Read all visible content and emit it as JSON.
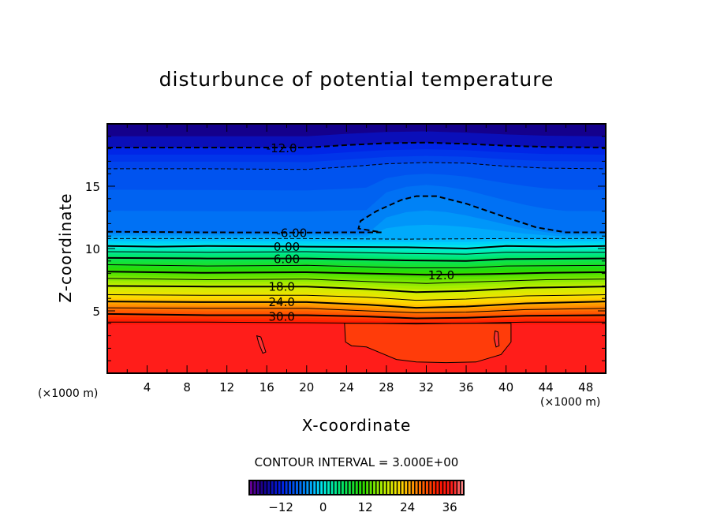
{
  "chart_data": {
    "type": "contour",
    "title": "disturbunce of potential temperature",
    "xlabel": "X-coordinate",
    "ylabel": "Z-coordinate",
    "x_unit": "(×1000 m)",
    "y_unit": "(×1000 m)",
    "xlim": [
      0,
      50
    ],
    "ylim": [
      0,
      20
    ],
    "x_ticks": [
      4,
      8,
      12,
      16,
      20,
      24,
      28,
      32,
      36,
      40,
      44,
      48
    ],
    "y_ticks": [
      5,
      10,
      15
    ],
    "contour_interval_text": "CONTOUR INTERVAL = 3.000E+00",
    "contour_interval": 3,
    "colorbar": {
      "range": [
        -21,
        40
      ],
      "ticks": [
        -12,
        0,
        12,
        24,
        36
      ],
      "tick_labels": [
        "−12",
        "0",
        "12",
        "24",
        "36"
      ]
    },
    "contours": [
      {
        "level": -12,
        "label": "-12.0",
        "label_at": [
          17.5,
          18.1
        ],
        "points": [
          [
            0,
            18.1
          ],
          [
            10,
            18.1
          ],
          [
            20,
            18.1
          ],
          [
            24,
            18.3
          ],
          [
            28,
            18.45
          ],
          [
            32,
            18.5
          ],
          [
            36,
            18.4
          ],
          [
            40,
            18.25
          ],
          [
            44,
            18.15
          ],
          [
            50,
            18.1
          ]
        ]
      },
      {
        "level": -9,
        "points": [
          [
            0,
            16.4
          ],
          [
            10,
            16.4
          ],
          [
            20,
            16.35
          ],
          [
            24,
            16.55
          ],
          [
            28,
            16.8
          ],
          [
            32,
            16.9
          ],
          [
            36,
            16.85
          ],
          [
            40,
            16.6
          ],
          [
            44,
            16.45
          ],
          [
            50,
            16.4
          ]
        ]
      },
      {
        "level": -6,
        "label": "-6.00",
        "label_at": [
          18.5,
          11.3
        ],
        "points": [
          [
            0,
            11.35
          ],
          [
            10,
            11.3
          ],
          [
            20,
            11.28
          ],
          [
            24,
            11.3
          ],
          [
            27.5,
            11.3
          ],
          [
            26,
            11.5
          ],
          [
            25.2,
            11.6
          ],
          [
            25.4,
            12.2
          ],
          [
            27,
            13.0
          ],
          [
            29.5,
            13.9
          ],
          [
            31,
            14.2
          ],
          [
            33,
            14.2
          ],
          [
            36,
            13.6
          ],
          [
            40,
            12.5
          ],
          [
            43,
            11.7
          ],
          [
            46,
            11.3
          ],
          [
            50,
            11.3
          ]
        ]
      },
      {
        "level": -3,
        "points": [
          [
            0,
            10.8
          ],
          [
            10,
            10.8
          ],
          [
            20,
            10.8
          ],
          [
            30,
            10.75
          ],
          [
            40,
            10.8
          ],
          [
            50,
            10.8
          ]
        ]
      },
      {
        "level": 0,
        "label": "0.00",
        "label_at": [
          18.0,
          10.2
        ],
        "points": [
          [
            0,
            10.2
          ],
          [
            5,
            10.15
          ],
          [
            10,
            10.2
          ],
          [
            20,
            10.15
          ],
          [
            30,
            10.1
          ],
          [
            36,
            10.0
          ],
          [
            40,
            10.2
          ],
          [
            45,
            10.15
          ],
          [
            50,
            10.2
          ]
        ]
      },
      {
        "level": 3,
        "points": [
          [
            0,
            9.75
          ],
          [
            10,
            9.7
          ],
          [
            20,
            9.75
          ],
          [
            30,
            9.6
          ],
          [
            36,
            9.55
          ],
          [
            40,
            9.7
          ],
          [
            50,
            9.7
          ]
        ]
      },
      {
        "level": 6,
        "label": "6.00",
        "label_at": [
          18.0,
          9.2
        ],
        "points": [
          [
            0,
            9.25
          ],
          [
            10,
            9.2
          ],
          [
            20,
            9.2
          ],
          [
            30,
            9.05
          ],
          [
            36,
            9.0
          ],
          [
            40,
            9.15
          ],
          [
            50,
            9.2
          ]
        ]
      },
      {
        "level": 9,
        "points": [
          [
            0,
            8.7
          ],
          [
            10,
            8.6
          ],
          [
            20,
            8.65
          ],
          [
            30,
            8.45
          ],
          [
            36,
            8.45
          ],
          [
            40,
            8.6
          ],
          [
            50,
            8.65
          ]
        ]
      },
      {
        "level": 12,
        "label": "12.0",
        "label_at": [
          33.5,
          7.9
        ],
        "points": [
          [
            0,
            8.15
          ],
          [
            10,
            8.05
          ],
          [
            20,
            8.1
          ],
          [
            26,
            8.0
          ],
          [
            32,
            7.9
          ],
          [
            38,
            7.95
          ],
          [
            44,
            8.05
          ],
          [
            50,
            8.1
          ]
        ]
      },
      {
        "level": 15,
        "points": [
          [
            0,
            7.6
          ],
          [
            10,
            7.5
          ],
          [
            20,
            7.55
          ],
          [
            28,
            7.3
          ],
          [
            32,
            7.2
          ],
          [
            38,
            7.35
          ],
          [
            44,
            7.5
          ],
          [
            50,
            7.55
          ]
        ]
      },
      {
        "level": 18,
        "label": "18.0",
        "label_at": [
          17.5,
          7.0
        ],
        "points": [
          [
            0,
            7.0
          ],
          [
            10,
            6.95
          ],
          [
            20,
            6.95
          ],
          [
            26,
            6.75
          ],
          [
            31,
            6.5
          ],
          [
            36,
            6.6
          ],
          [
            42,
            6.85
          ],
          [
            50,
            6.95
          ]
        ]
      },
      {
        "level": 21,
        "points": [
          [
            0,
            6.3
          ],
          [
            10,
            6.25
          ],
          [
            20,
            6.25
          ],
          [
            26,
            6.1
          ],
          [
            31,
            5.85
          ],
          [
            36,
            5.95
          ],
          [
            42,
            6.2
          ],
          [
            50,
            6.3
          ]
        ]
      },
      {
        "level": 24,
        "label": "24.0",
        "label_at": [
          17.5,
          5.75
        ],
        "points": [
          [
            0,
            5.75
          ],
          [
            10,
            5.7
          ],
          [
            20,
            5.7
          ],
          [
            26,
            5.5
          ],
          [
            31,
            5.25
          ],
          [
            36,
            5.35
          ],
          [
            42,
            5.6
          ],
          [
            50,
            5.75
          ]
        ]
      },
      {
        "level": 27,
        "points": [
          [
            0,
            5.25
          ],
          [
            10,
            5.2
          ],
          [
            20,
            5.2
          ],
          [
            26,
            5.0
          ],
          [
            31,
            4.85
          ],
          [
            36,
            4.9
          ],
          [
            42,
            5.1
          ],
          [
            50,
            5.2
          ]
        ]
      },
      {
        "level": 30,
        "label": "30.0",
        "label_at": [
          17.5,
          4.6
        ],
        "points": [
          [
            0,
            4.75
          ],
          [
            10,
            4.65
          ],
          [
            20,
            4.65
          ],
          [
            26,
            4.55
          ],
          [
            31,
            4.4
          ],
          [
            36,
            4.45
          ],
          [
            42,
            4.6
          ],
          [
            50,
            4.65
          ]
        ]
      },
      {
        "level": 33,
        "points": [
          [
            0,
            4.1
          ],
          [
            10,
            4.1
          ],
          [
            20,
            4.05
          ],
          [
            26,
            4.0
          ],
          [
            31,
            3.95
          ],
          [
            36,
            4.0
          ],
          [
            42,
            4.1
          ],
          [
            50,
            4.1
          ]
        ]
      }
    ],
    "closed_contours": [
      {
        "level": 36,
        "points": [
          [
            23.8,
            4.0
          ],
          [
            23.9,
            2.5
          ],
          [
            24.5,
            2.2
          ],
          [
            26,
            2.1
          ],
          [
            27.5,
            1.6
          ],
          [
            29,
            1.1
          ],
          [
            31,
            0.9
          ],
          [
            34,
            0.85
          ],
          [
            37,
            0.9
          ],
          [
            39.5,
            1.5
          ],
          [
            40.5,
            2.5
          ],
          [
            40.5,
            4.0
          ]
        ]
      },
      {
        "level": 36,
        "points": [
          [
            15.0,
            3.0
          ],
          [
            15.4,
            2.9
          ],
          [
            15.9,
            1.7
          ],
          [
            15.6,
            1.6
          ],
          [
            15.2,
            2.4
          ]
        ]
      },
      {
        "level": 36,
        "points": [
          [
            38.9,
            3.4
          ],
          [
            39.2,
            3.3
          ],
          [
            39.3,
            2.2
          ],
          [
            39.0,
            2.1
          ],
          [
            38.8,
            2.8
          ]
        ]
      }
    ]
  }
}
